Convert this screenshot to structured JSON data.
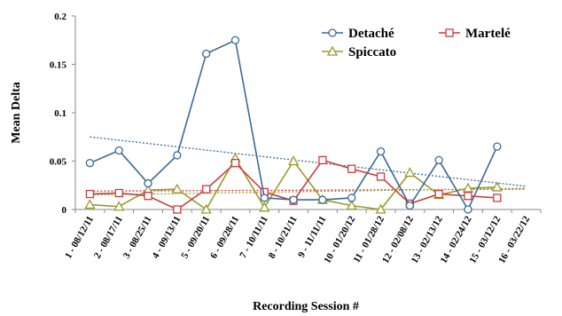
{
  "chart_data": {
    "type": "line",
    "xlabel": "Recording Session #",
    "ylabel": "Mean Delta",
    "ylim": [
      0,
      0.2
    ],
    "yticks": [
      "0",
      "0.05",
      "0.1",
      "0.15",
      "0.2"
    ],
    "categories": [
      "1 - 08/12/11",
      "2 - 08/17/11",
      "3 - 08/25/11",
      "4 - 09/13/11",
      "5 - 09/20/11",
      "6 - 09/28/11",
      "7 - 10/11/11",
      "8 - 10/21/11",
      "9 - 11/11/11",
      "10 - 01/20/12",
      "11 - 01/28/12",
      "12 - 02/08/12",
      "13 - 02/13/12",
      "14 - 02/24/12",
      "15 - 03/12/12",
      "16 - 03/22/12"
    ],
    "legend_position": "top-right",
    "grid": false,
    "series": [
      {
        "name": "Detaché",
        "color": "#3a6a9a",
        "marker": "circle",
        "values": [
          0.048,
          0.061,
          0.027,
          0.056,
          0.161,
          0.175,
          0.012,
          0.01,
          0.01,
          0.012,
          0.06,
          0.004,
          0.051,
          0.0,
          0.065,
          null
        ],
        "trendline": [
          0.075,
          0.024
        ]
      },
      {
        "name": "Martelé",
        "color": "#cc3b3b",
        "marker": "square",
        "values": [
          0.016,
          0.017,
          0.014,
          0.0,
          0.021,
          0.048,
          0.018,
          0.009,
          0.051,
          0.042,
          0.034,
          0.006,
          0.016,
          0.014,
          0.012,
          null
        ],
        "trendline": [
          0.019,
          0.021
        ]
      },
      {
        "name": "Spiccato",
        "color": "#9a9a2a",
        "marker": "triangle",
        "values": [
          0.005,
          0.003,
          0.02,
          0.021,
          0.0,
          0.053,
          0.002,
          0.05,
          0.01,
          0.004,
          0.0,
          0.038,
          0.015,
          0.022,
          0.023,
          null
        ],
        "trendline": [
          0.015,
          0.022
        ]
      }
    ]
  }
}
